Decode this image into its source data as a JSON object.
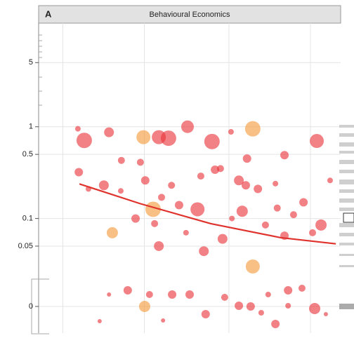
{
  "chart_data": {
    "type": "scatter",
    "panel_label": "A",
    "title": "Behavioural Economics",
    "log_y": true,
    "grid": true,
    "xlim": [
      0,
      100
    ],
    "xticks": [
      8,
      35,
      63,
      90
    ],
    "ylim": [
      0.03,
      13
    ],
    "yticks": [
      5,
      1,
      0.5,
      0.1,
      {
        "value": 0.05,
        "label": "0.05"
      },
      0
    ],
    "x": [
      13,
      15.1,
      23.3,
      34.7,
      39.8,
      43,
      49.3,
      57.4,
      63.7,
      70.9,
      81.4,
      92.1,
      13.3,
      21.6,
      27.4,
      33.7,
      35.3,
      27.2,
      37.9,
      24.4,
      32.1,
      38.4,
      39.8,
      46.5,
      52.6,
      54.7,
      53.7,
      58.4,
      60.2,
      60.9,
      66.3,
      67.4,
      68.6,
      69,
      72.6,
      70.9,
      75.1,
      81.4,
      84.4,
      87.7,
      93.5,
      90.7,
      40.7,
      44,
      16.5,
      64,
      78.4,
      96.5,
      48.8,
      79,
      23.3,
      29.5,
      35.1,
      36.7,
      44.2,
      50,
      55.3,
      61.6,
      66.3,
      70.2,
      73.7,
      78.4,
      82.6,
      87.2,
      91.4,
      20.2,
      41.2,
      82.6,
      76,
      95.1
    ],
    "values": [
      0.95,
      0.71,
      0.87,
      0.77,
      0.77,
      0.75,
      1.0,
      0.69,
      0.88,
      0.95,
      0.49,
      0.7,
      0.32,
      0.23,
      0.43,
      0.41,
      0.26,
      0.2,
      0.126,
      0.07,
      0.1,
      0.088,
      0.05,
      0.14,
      0.126,
      0.044,
      0.29,
      0.34,
      0.35,
      0.06,
      0.26,
      0.12,
      0.23,
      0.45,
      0.21,
      0.03,
      0.085,
      0.065,
      0.11,
      0.15,
      0.085,
      0.07,
      0.17,
      0.23,
      0.21,
      0.1,
      0.24,
      0.26,
      0.07,
      0.13,
      0,
      0,
      0,
      0,
      0,
      0,
      0,
      0,
      0,
      0,
      0,
      0,
      0,
      0,
      0,
      0,
      0,
      0,
      0,
      0
    ],
    "sizes": [
      4,
      11,
      7,
      10,
      10,
      11,
      9,
      11,
      4,
      11,
      6,
      10,
      6,
      7,
      5,
      5,
      6,
      4,
      11,
      8,
      6,
      5,
      7,
      6,
      10,
      7,
      5,
      6,
      5,
      7,
      7,
      8,
      6,
      6,
      6,
      10,
      5,
      6,
      5,
      6,
      8,
      5,
      5,
      5,
      4,
      4,
      4,
      4,
      4,
      5,
      3,
      6,
      8,
      5,
      6,
      6,
      6,
      5,
      6,
      6,
      4,
      6,
      6,
      5,
      8,
      3,
      3,
      4,
      4,
      3
    ],
    "colors": [
      "#e8333a",
      "#e8333a",
      "#e8333a",
      "#f59a3c",
      "#e8333a",
      "#e8333a",
      "#e8333a",
      "#e8333a",
      "#e8333a",
      "#f59a3c",
      "#e8333a",
      "#e8333a",
      "#e8333a",
      "#e8333a",
      "#e8333a",
      "#e8333a",
      "#e8333a",
      "#e8333a",
      "#f59a3c",
      "#f59a3c",
      "#e8333a",
      "#e8333a",
      "#e8333a",
      "#e8333a",
      "#e8333a",
      "#e8333a",
      "#e8333a",
      "#e8333a",
      "#e8333a",
      "#e8333a",
      "#e8333a",
      "#e8333a",
      "#e8333a",
      "#e8333a",
      "#e8333a",
      "#f59a3c",
      "#e8333a",
      "#e8333a",
      "#e8333a",
      "#e8333a",
      "#e8333a",
      "#e8333a",
      "#e8333a",
      "#e8333a",
      "#e8333a",
      "#e8333a",
      "#e8333a",
      "#e8333a",
      "#e8333a",
      "#e8333a",
      "#e8333a",
      "#e8333a",
      "#f59a3c",
      "#e8333a",
      "#e8333a",
      "#e8333a",
      "#e8333a",
      "#e8333a",
      "#e8333a",
      "#e8333a",
      "#e8333a",
      "#e8333a",
      "#e8333a",
      "#e8333a",
      "#e8333a",
      "#e8333a",
      "#e8333a",
      "#e8333a",
      "#e8333a",
      "#e8333a"
    ],
    "trend": {
      "color": "#e0322c",
      "x": [
        13.5,
        33.7,
        57,
        80,
        98.4
      ],
      "values": [
        0.238,
        0.145,
        0.088,
        0.062,
        0.053
      ]
    }
  }
}
